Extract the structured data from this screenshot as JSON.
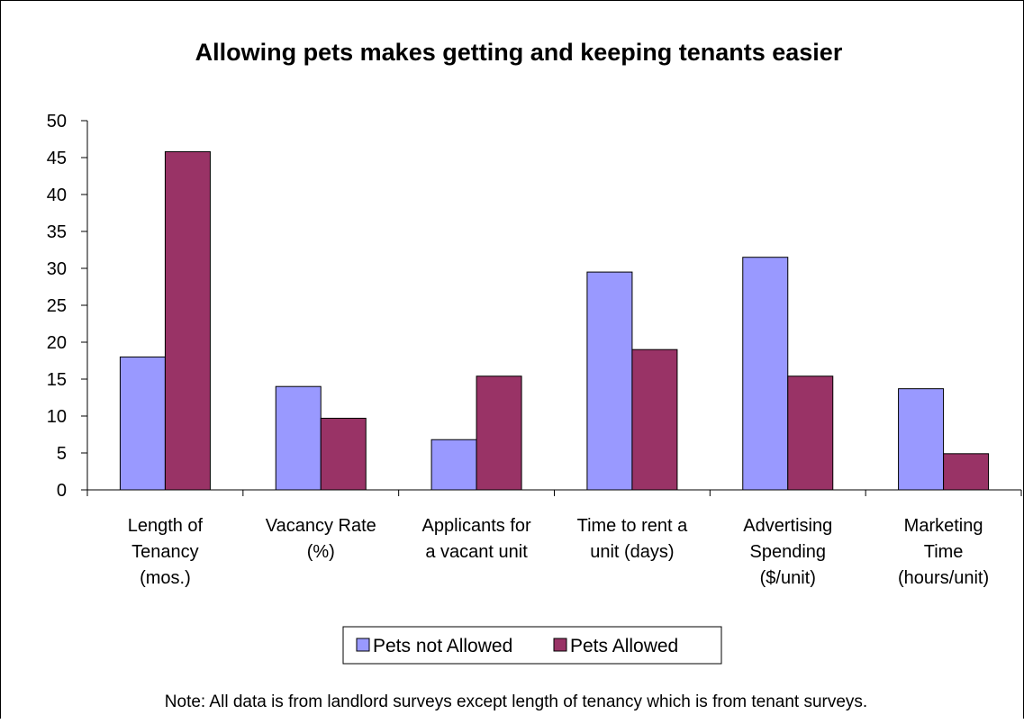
{
  "chart_data": {
    "type": "bar",
    "title": "Allowing pets makes getting and keeping tenants easier",
    "xlabel": "",
    "ylabel": "",
    "ylim": [
      0,
      50
    ],
    "yticks": [
      0,
      5,
      10,
      15,
      20,
      25,
      30,
      35,
      40,
      45,
      50
    ],
    "grid": false,
    "legend_position": "bottom",
    "categories": [
      [
        "Length of",
        "Tenancy",
        "(mos.)"
      ],
      [
        "Vacancy Rate",
        "(%)"
      ],
      [
        "Applicants for",
        "a vacant unit"
      ],
      [
        "Time to rent a",
        "unit (days)"
      ],
      [
        "Advertising",
        "Spending",
        "($/unit)"
      ],
      [
        "Marketing",
        "Time",
        "(hours/unit)"
      ]
    ],
    "series": [
      {
        "name": "Pets not Allowed",
        "color": "#9999ff",
        "values": [
          18,
          14,
          6.8,
          29.5,
          31.5,
          13.7
        ]
      },
      {
        "name": "Pets Allowed",
        "color": "#993366",
        "values": [
          45.8,
          9.7,
          15.4,
          19,
          15.4,
          4.9
        ]
      }
    ],
    "note": "Note:  All data is from landlord surveys except length of tenancy which is from tenant surveys."
  }
}
